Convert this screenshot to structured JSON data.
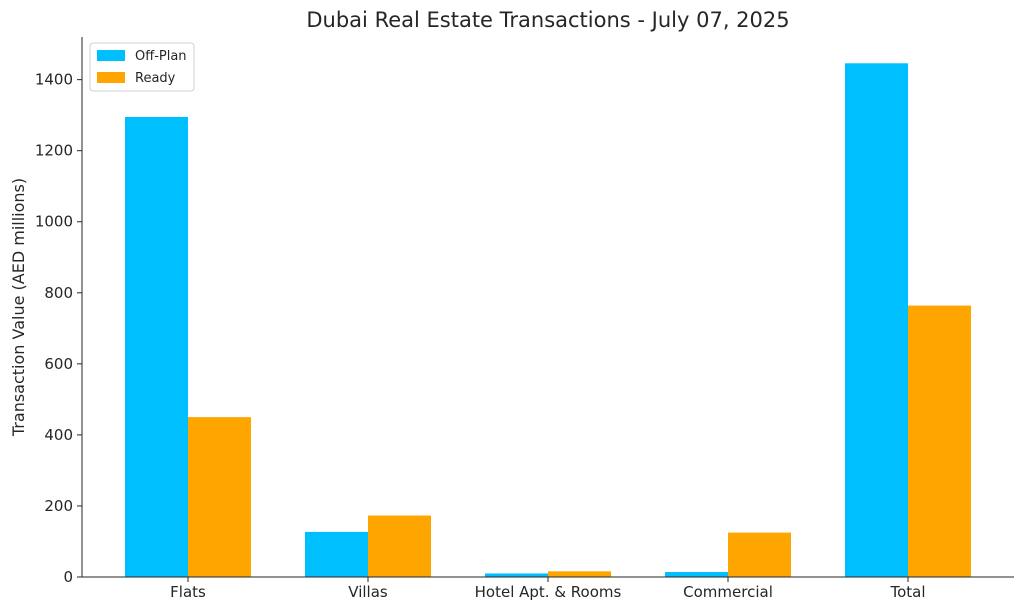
{
  "chart_data": {
    "type": "bar",
    "title": "Dubai Real Estate Transactions - July 07, 2025",
    "xlabel": "",
    "ylabel": "Transaction Value (AED millions)",
    "categories": [
      "Flats",
      "Villas",
      "Hotel Apt. & Rooms",
      "Commercial",
      "Total"
    ],
    "series": [
      {
        "name": "Off-Plan",
        "color": "#00BFFF",
        "values": [
          1295,
          127,
          10,
          14,
          1446
        ]
      },
      {
        "name": "Ready",
        "color": "#FFA500",
        "values": [
          450,
          173,
          16,
          125,
          764
        ]
      }
    ],
    "ylim": [
      0,
      1520
    ],
    "yticks": [
      0,
      200,
      400,
      600,
      800,
      1000,
      1200,
      1400
    ],
    "grid": false,
    "legend_position": "top-left"
  }
}
